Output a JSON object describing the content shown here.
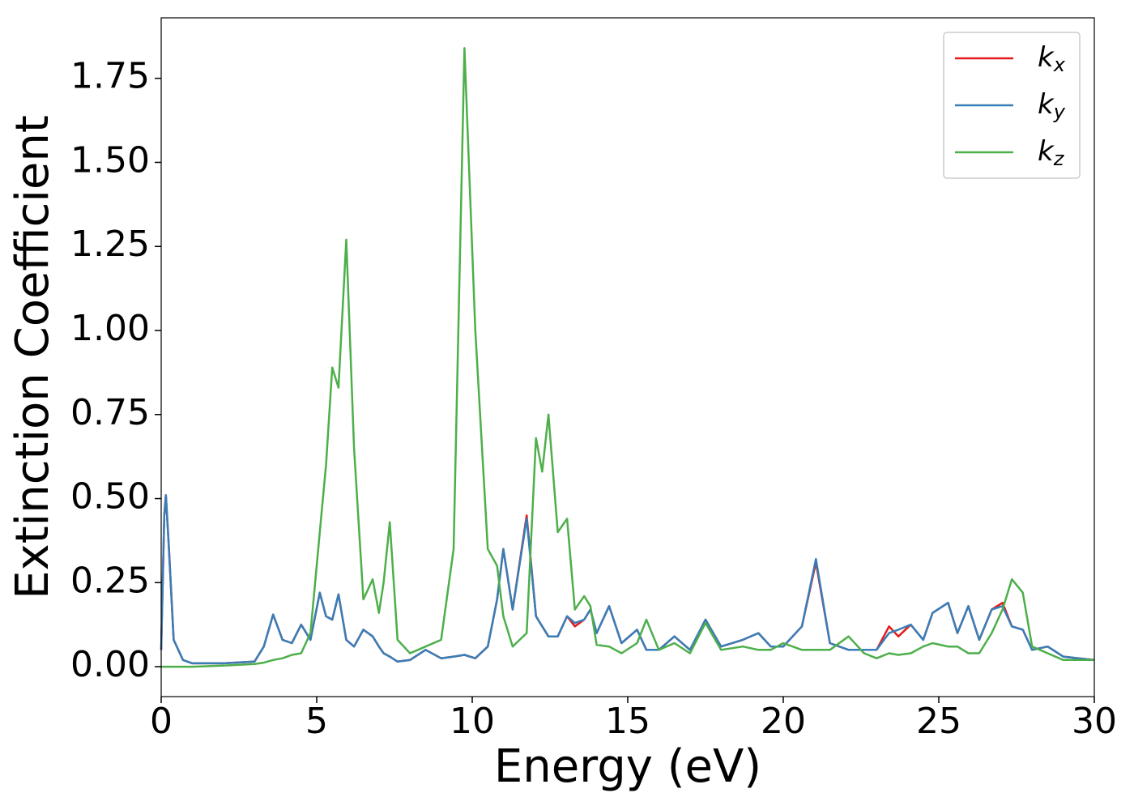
{
  "chart_data": {
    "type": "line",
    "xlabel": "Energy (eV)",
    "ylabel": "Extinction Coefficient",
    "x": [
      0,
      0.1,
      0.15,
      0.25,
      0.4,
      0.7,
      1.0,
      2,
      3,
      3.3,
      3.6,
      3.9,
      4.2,
      4.5,
      4.8,
      5.1,
      5.3,
      5.5,
      5.7,
      5.95,
      6.2,
      6.5,
      6.8,
      7.0,
      7.15,
      7.35,
      7.6,
      8.0,
      8.5,
      9.0,
      9.4,
      9.75,
      10.1,
      10.5,
      10.8,
      11.0,
      11.3,
      11.75,
      12.05,
      12.25,
      12.45,
      12.75,
      13.05,
      13.3,
      13.6,
      13.8,
      14.0,
      14.4,
      14.8,
      15.3,
      15.6,
      16.0,
      16.5,
      17.0,
      17.5,
      18.0,
      18.7,
      19.2,
      19.6,
      20.0,
      20.6,
      21.05,
      21.5,
      22.1,
      22.6,
      23.0,
      23.4,
      23.7,
      24.1,
      24.5,
      24.8,
      25.3,
      25.6,
      25.95,
      26.3,
      26.7,
      27.05,
      27.35,
      27.7,
      28.0,
      28.5,
      29.0,
      29.5,
      30
    ],
    "series": [
      {
        "name": "kx",
        "color": "#e41a1c",
        "values": [
          0.05,
          0.45,
          0.51,
          0.35,
          0.08,
          0.02,
          0.01,
          0.01,
          0.015,
          0.06,
          0.155,
          0.08,
          0.07,
          0.125,
          0.08,
          0.22,
          0.15,
          0.14,
          0.215,
          0.08,
          0.06,
          0.11,
          0.09,
          0.06,
          0.04,
          0.03,
          0.015,
          0.02,
          0.05,
          0.025,
          0.03,
          0.035,
          0.025,
          0.06,
          0.2,
          0.35,
          0.17,
          0.45,
          0.15,
          0.12,
          0.09,
          0.09,
          0.15,
          0.12,
          0.14,
          0.17,
          0.1,
          0.18,
          0.07,
          0.11,
          0.05,
          0.05,
          0.09,
          0.05,
          0.14,
          0.06,
          0.08,
          0.1,
          0.06,
          0.06,
          0.12,
          0.31,
          0.07,
          0.05,
          0.05,
          0.05,
          0.12,
          0.09,
          0.125,
          0.08,
          0.16,
          0.19,
          0.1,
          0.18,
          0.08,
          0.17,
          0.19,
          0.12,
          0.11,
          0.05,
          0.06,
          0.03,
          0.025,
          0.02
        ]
      },
      {
        "name": "ky",
        "color": "#377eb8",
        "values": [
          0.05,
          0.45,
          0.51,
          0.35,
          0.08,
          0.02,
          0.01,
          0.01,
          0.015,
          0.06,
          0.155,
          0.08,
          0.07,
          0.125,
          0.08,
          0.22,
          0.15,
          0.14,
          0.215,
          0.08,
          0.06,
          0.11,
          0.09,
          0.06,
          0.04,
          0.03,
          0.015,
          0.02,
          0.05,
          0.025,
          0.03,
          0.035,
          0.025,
          0.06,
          0.2,
          0.35,
          0.17,
          0.44,
          0.15,
          0.12,
          0.09,
          0.09,
          0.15,
          0.13,
          0.14,
          0.17,
          0.1,
          0.18,
          0.07,
          0.11,
          0.05,
          0.05,
          0.09,
          0.05,
          0.14,
          0.06,
          0.08,
          0.1,
          0.06,
          0.06,
          0.12,
          0.32,
          0.07,
          0.05,
          0.05,
          0.05,
          0.1,
          0.11,
          0.125,
          0.08,
          0.16,
          0.19,
          0.1,
          0.18,
          0.08,
          0.17,
          0.18,
          0.12,
          0.11,
          0.05,
          0.06,
          0.03,
          0.025,
          0.02
        ]
      },
      {
        "name": "kz",
        "color": "#4daf4a",
        "values": [
          0.0,
          0.0,
          0.0,
          0.0,
          0.0,
          0.0,
          0.0,
          0.003,
          0.008,
          0.012,
          0.02,
          0.025,
          0.035,
          0.04,
          0.1,
          0.4,
          0.6,
          0.89,
          0.83,
          1.27,
          0.65,
          0.2,
          0.26,
          0.16,
          0.25,
          0.43,
          0.08,
          0.04,
          0.06,
          0.08,
          0.35,
          1.84,
          1.0,
          0.35,
          0.3,
          0.15,
          0.06,
          0.1,
          0.68,
          0.58,
          0.75,
          0.4,
          0.44,
          0.17,
          0.21,
          0.18,
          0.065,
          0.06,
          0.04,
          0.07,
          0.14,
          0.05,
          0.07,
          0.04,
          0.13,
          0.05,
          0.06,
          0.05,
          0.05,
          0.07,
          0.05,
          0.05,
          0.05,
          0.09,
          0.04,
          0.025,
          0.04,
          0.035,
          0.04,
          0.06,
          0.07,
          0.06,
          0.06,
          0.04,
          0.04,
          0.1,
          0.17,
          0.26,
          0.22,
          0.06,
          0.04,
          0.02,
          0.02,
          0.02
        ]
      }
    ],
    "xlim": [
      0,
      30
    ],
    "xticks": [
      0,
      5,
      10,
      15,
      20,
      25,
      30
    ],
    "ylim": [
      -0.089,
      1.93
    ],
    "yticks": [
      {
        "value": 0,
        "label": "0.00"
      },
      {
        "value": 0.25,
        "label": "0.25"
      },
      {
        "value": 0.5,
        "label": "0.50"
      },
      {
        "value": 0.75,
        "label": "0.75"
      },
      {
        "value": 1,
        "label": "1.00"
      },
      {
        "value": 1.25,
        "label": "1.25"
      },
      {
        "value": 1.5,
        "label": "1.50"
      },
      {
        "value": 1.75,
        "label": "1.75"
      }
    ],
    "legend": "upper right"
  }
}
